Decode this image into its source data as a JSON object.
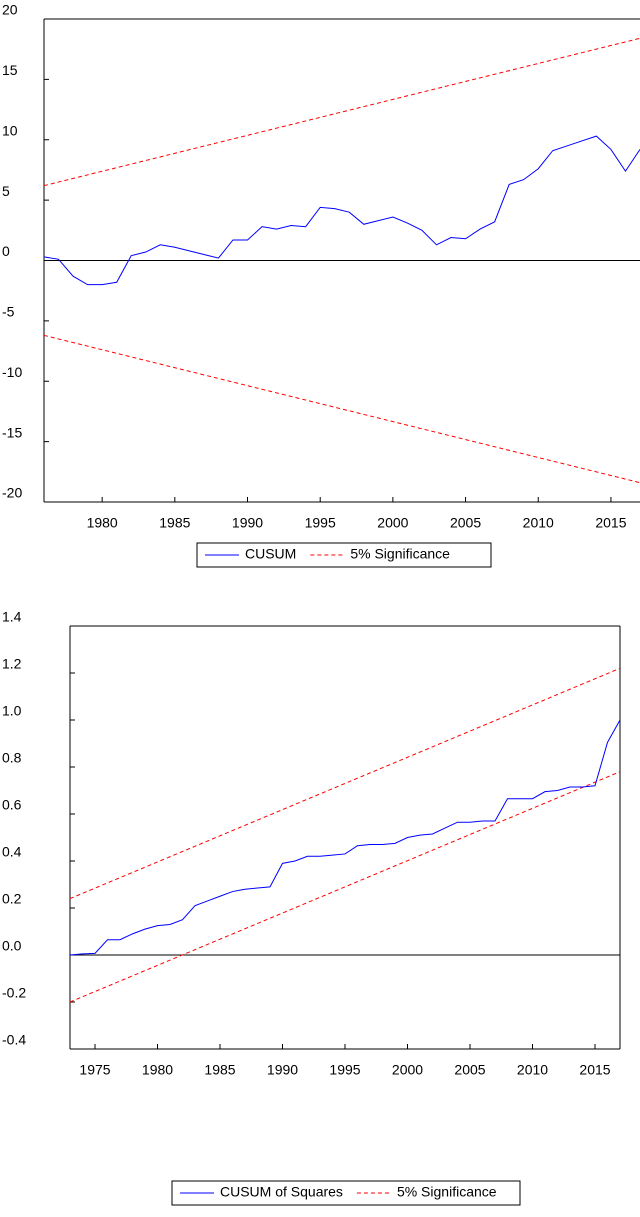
{
  "chart_data": [
    {
      "type": "line",
      "x": [
        1976,
        1977,
        1978,
        1979,
        1980,
        1981,
        1982,
        1983,
        1984,
        1985,
        1986,
        1987,
        1988,
        1989,
        1990,
        1991,
        1992,
        1993,
        1994,
        1995,
        1996,
        1997,
        1998,
        1999,
        2000,
        2001,
        2002,
        2003,
        2004,
        2005,
        2006,
        2007,
        2008,
        2009,
        2010,
        2011,
        2012,
        2013,
        2014,
        2015,
        2016,
        2017
      ],
      "series": [
        {
          "name": "CUSUM",
          "color": "#0000ff",
          "values": [
            0.3,
            0.1,
            -1.3,
            -2.0,
            -2.0,
            -1.8,
            0.4,
            0.7,
            1.3,
            1.1,
            0.8,
            0.5,
            0.2,
            1.7,
            1.7,
            2.8,
            2.6,
            2.9,
            2.8,
            4.4,
            4.3,
            4.0,
            3.0,
            3.3,
            3.6,
            3.1,
            2.5,
            1.3,
            1.9,
            1.8,
            2.6,
            3.2,
            6.3,
            6.7,
            7.6,
            9.1,
            9.5,
            9.9,
            10.3,
            9.2,
            7.4,
            9.2
          ]
        }
      ],
      "bands": {
        "name": "5% Significance",
        "color": "#ff0000",
        "x": [
          1976,
          2017
        ],
        "upper": [
          6.2,
          18.4
        ],
        "lower": [
          -6.2,
          -18.4
        ]
      },
      "xlim": [
        1976,
        2017
      ],
      "xticks": [
        1980,
        1985,
        1990,
        1995,
        2000,
        2005,
        2010,
        2015
      ],
      "ylim": [
        -20,
        20
      ],
      "yticks": [
        -20,
        -15,
        -10,
        -5,
        0,
        5,
        10,
        15,
        20
      ]
    },
    {
      "type": "line",
      "x": [
        1973,
        1974,
        1975,
        1976,
        1977,
        1978,
        1979,
        1980,
        1981,
        1982,
        1983,
        1984,
        1985,
        1986,
        1987,
        1988,
        1989,
        1990,
        1991,
        1992,
        1993,
        1994,
        1995,
        1996,
        1997,
        1998,
        1999,
        2000,
        2001,
        2002,
        2003,
        2004,
        2005,
        2006,
        2007,
        2008,
        2009,
        2010,
        2011,
        2012,
        2013,
        2014,
        2015,
        2016,
        2017
      ],
      "series": [
        {
          "name": "CUSUM of Squares",
          "color": "#0000ff",
          "values": [
            0.0,
            0.005,
            0.007,
            0.065,
            0.065,
            0.09,
            0.11,
            0.125,
            0.13,
            0.15,
            0.21,
            0.23,
            0.25,
            0.27,
            0.28,
            0.285,
            0.29,
            0.39,
            0.4,
            0.42,
            0.42,
            0.425,
            0.43,
            0.465,
            0.47,
            0.47,
            0.475,
            0.5,
            0.51,
            0.515,
            0.54,
            0.565,
            0.565,
            0.57,
            0.57,
            0.665,
            0.665,
            0.665,
            0.695,
            0.7,
            0.715,
            0.715,
            0.72,
            0.905,
            1.0
          ]
        }
      ],
      "bands": {
        "name": "5% Significance",
        "color": "#ff0000",
        "x": [
          1973,
          2017
        ],
        "upper": [
          0.24,
          1.22
        ],
        "lower": [
          -0.2,
          0.78
        ]
      },
      "xlim": [
        1973,
        2017
      ],
      "xticks": [
        1975,
        1980,
        1985,
        1990,
        1995,
        2000,
        2005,
        2010,
        2015
      ],
      "ylim": [
        -0.4,
        1.4
      ],
      "yticks": [
        {
          "value": -0.4,
          "label": "-0.4"
        },
        {
          "value": -0.2,
          "label": "-0.2"
        },
        {
          "value": 0,
          "label": "0.0"
        },
        {
          "value": 0.2,
          "label": "0.2"
        },
        {
          "value": 0.4,
          "label": "0.4"
        },
        {
          "value": 0.6,
          "label": "0.6"
        },
        {
          "value": 0.8,
          "label": "0.8"
        },
        {
          "value": 1,
          "label": "1.0"
        },
        {
          "value": 1.2,
          "label": "1.2"
        },
        {
          "value": 1.4,
          "label": "1.4"
        }
      ]
    }
  ]
}
